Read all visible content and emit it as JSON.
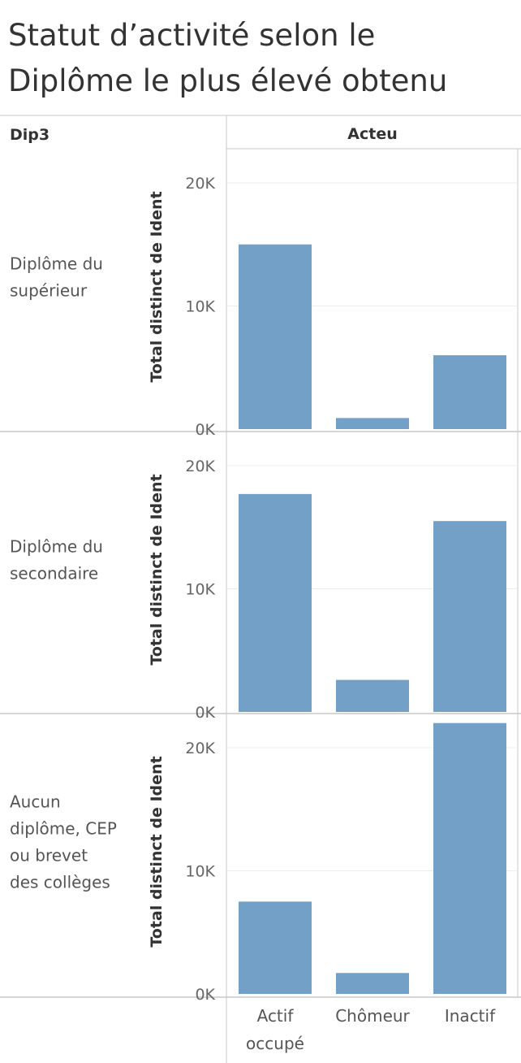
{
  "title": {
    "line1": "Statut d’activité  selon le",
    "line2": "Diplôme le plus élevé obtenu"
  },
  "header": {
    "row_field": "Dip3",
    "column_field": "Acteu"
  },
  "colors": {
    "bar": "#73a0c7",
    "gridline": "#ececec",
    "divider": "#c8c8c8"
  },
  "chart_data": {
    "type": "bar",
    "categories": [
      "Actif occupé",
      "Chômeur",
      "Inactif"
    ],
    "category_lines": [
      [
        "Actif",
        "occupé"
      ],
      [
        "Chômeur"
      ],
      [
        "Inactif"
      ]
    ],
    "ylabel": "Total distinct de Ident",
    "ylim": [
      0,
      22000
    ],
    "yticks": [
      0,
      10000,
      20000
    ],
    "ytick_labels": [
      "0K",
      "10K",
      "20K"
    ],
    "grid": true,
    "series": [
      {
        "row_lines": [
          "Diplôme du",
          "supérieur"
        ],
        "values": [
          15000,
          900,
          6000
        ]
      },
      {
        "row_lines": [
          "Diplôme du",
          "secondaire"
        ],
        "values": [
          17700,
          2600,
          15500
        ]
      },
      {
        "row_lines": [
          "Aucun",
          "diplôme, CEP",
          "ou brevet",
          "des collèges"
        ],
        "values": [
          7500,
          1700,
          22000
        ]
      }
    ]
  }
}
